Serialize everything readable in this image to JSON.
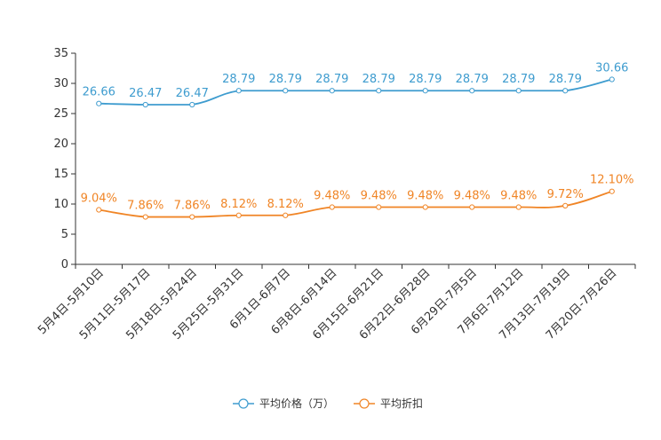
{
  "chart_data": {
    "type": "line",
    "title": "",
    "xlabel": "",
    "ylabel": "",
    "ylim": [
      0,
      35
    ],
    "yticks": [
      0,
      5,
      10,
      15,
      20,
      25,
      30,
      35
    ],
    "grid": false,
    "legend_position": "bottom-center",
    "categories": [
      "5月4日-5月10日",
      "5月11日-5月17日",
      "5月18日-5月24日",
      "5月25日-5月31日",
      "6月1日-6月7日",
      "6月8日-6月14日",
      "6月15日-6月21日",
      "6月22日-6月28日",
      "6月29日-7月5日",
      "7月6日-7月12日",
      "7月13日-7月19日",
      "7月20日-7月26日"
    ],
    "series": [
      {
        "name": "平均价格（万）",
        "color": "#3e9ccf",
        "values": [
          26.66,
          26.47,
          26.47,
          28.79,
          28.79,
          28.79,
          28.79,
          28.79,
          28.79,
          28.79,
          28.79,
          30.66
        ],
        "labels": [
          "26.66",
          "26.47",
          "26.47",
          "28.79",
          "28.79",
          "28.79",
          "28.79",
          "28.79",
          "28.79",
          "28.79",
          "28.79",
          "30.66"
        ]
      },
      {
        "name": "平均折扣",
        "color": "#f08526",
        "values": [
          9.04,
          7.86,
          7.86,
          8.12,
          8.12,
          9.48,
          9.48,
          9.48,
          9.48,
          9.48,
          9.72,
          12.1
        ],
        "labels": [
          "9.04%",
          "7.86%",
          "7.86%",
          "8.12%",
          "8.12%",
          "9.48%",
          "9.48%",
          "9.48%",
          "9.48%",
          "9.48%",
          "9.72%",
          "12.10%"
        ]
      }
    ]
  }
}
